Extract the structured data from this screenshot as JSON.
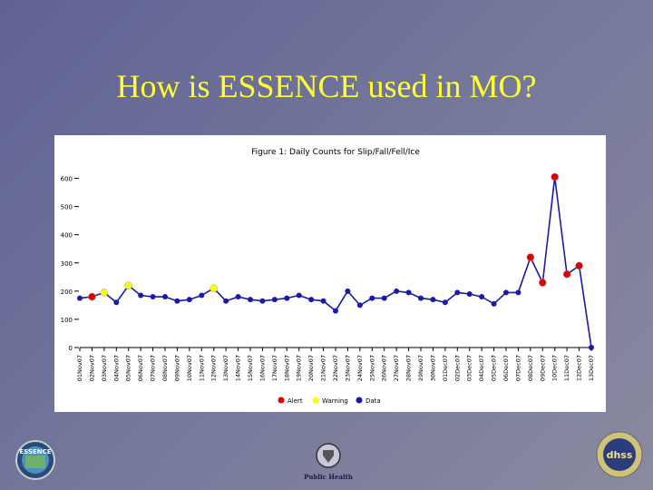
{
  "slide": {
    "title": "How is ESSENCE used in MO?",
    "text_color": "#ffff33"
  },
  "chart_data": {
    "type": "line",
    "title": "Figure 1: Daily Counts for Slip/Fall/Fell/Ice",
    "xlabel": "",
    "ylabel": "",
    "ylim": [
      0,
      650
    ],
    "yticks": [
      0,
      100,
      200,
      300,
      400,
      500,
      600
    ],
    "grid": false,
    "categories": [
      "01Nov07",
      "02Nov07",
      "03Nov07",
      "04Nov07",
      "05Nov07",
      "06Nov07",
      "07Nov07",
      "08Nov07",
      "09Nov07",
      "10Nov07",
      "11Nov07",
      "12Nov07",
      "13Nov07",
      "14Nov07",
      "15Nov07",
      "16Nov07",
      "17Nov07",
      "18Nov07",
      "19Nov07",
      "20Nov07",
      "21Nov07",
      "22Nov07",
      "23Nov07",
      "24Nov07",
      "25Nov07",
      "26Nov07",
      "27Nov07",
      "28Nov07",
      "29Nov07",
      "30Nov07",
      "01Dec07",
      "02Dec07",
      "03Dec07",
      "04Dec07",
      "05Dec07",
      "06Dec07",
      "07Dec07",
      "08Dec07",
      "09Dec07",
      "10Dec07",
      "11Dec07",
      "12Dec07",
      "13Dec07"
    ],
    "values": [
      175,
      180,
      195,
      160,
      220,
      185,
      180,
      180,
      165,
      170,
      185,
      210,
      165,
      180,
      170,
      165,
      170,
      175,
      185,
      170,
      165,
      130,
      200,
      150,
      175,
      175,
      200,
      195,
      175,
      170,
      160,
      195,
      190,
      180,
      155,
      195,
      195,
      320,
      230,
      605,
      260,
      290,
      0
    ],
    "status": [
      "normal",
      "alert",
      "warning",
      "normal",
      "warning",
      "normal",
      "normal",
      "normal",
      "normal",
      "normal",
      "normal",
      "warning",
      "normal",
      "normal",
      "normal",
      "normal",
      "normal",
      "normal",
      "normal",
      "normal",
      "normal",
      "normal",
      "normal",
      "normal",
      "normal",
      "normal",
      "normal",
      "normal",
      "normal",
      "normal",
      "normal",
      "normal",
      "normal",
      "normal",
      "normal",
      "normal",
      "normal",
      "alert",
      "alert",
      "alert",
      "alert",
      "alert",
      "normal"
    ],
    "legend": [
      {
        "label": "Alert",
        "color": "#e00000"
      },
      {
        "label": "Warning",
        "color": "#ffff00"
      },
      {
        "label": "Data",
        "color": "#1a1aa6"
      }
    ],
    "line_color": "#1a1aa6"
  },
  "logos": {
    "left": "ESSENCE",
    "center": "Public Health",
    "right": "dhss"
  }
}
